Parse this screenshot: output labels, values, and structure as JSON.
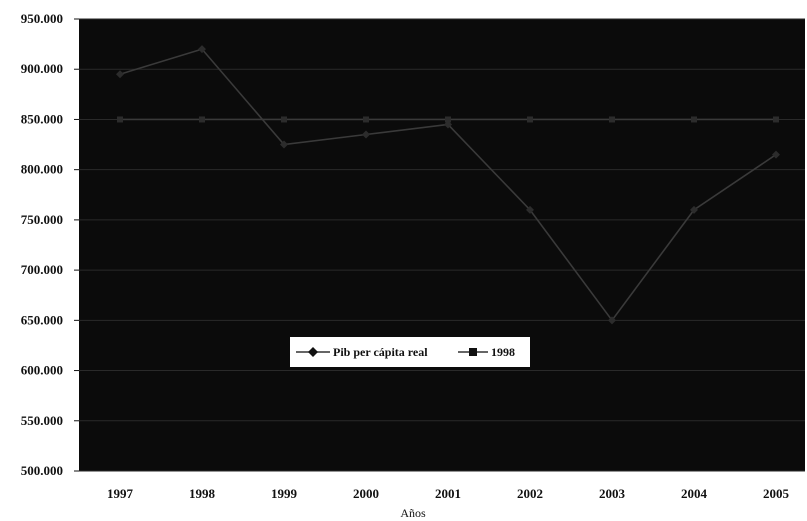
{
  "chart_data": {
    "type": "line",
    "title": "",
    "xlabel": "Años",
    "ylabel": "",
    "x": [
      "1997",
      "1998",
      "1999",
      "2000",
      "2001",
      "2002",
      "2003",
      "2004",
      "2005"
    ],
    "y_ticks": [
      "500.000",
      "550.000",
      "600.000",
      "650.000",
      "700.000",
      "750.000",
      "800.000",
      "850.000",
      "900.000",
      "950.000"
    ],
    "ylim": [
      500000,
      950000
    ],
    "grid": true,
    "legend_position": "center-left",
    "series": [
      {
        "name": "Pib per cápita real",
        "marker": "diamond",
        "values": [
          895000,
          920000,
          825000,
          835000,
          845000,
          760000,
          650000,
          760000,
          815000
        ]
      },
      {
        "name": "1998",
        "marker": "square",
        "values": [
          850000,
          850000,
          850000,
          850000,
          850000,
          850000,
          850000,
          850000,
          850000
        ]
      }
    ],
    "colors": {
      "plot_background": "#0b0b0b",
      "gridline": "#2a2a2a",
      "series_line": "#3a3a3a",
      "legend_line": "#333333"
    }
  }
}
